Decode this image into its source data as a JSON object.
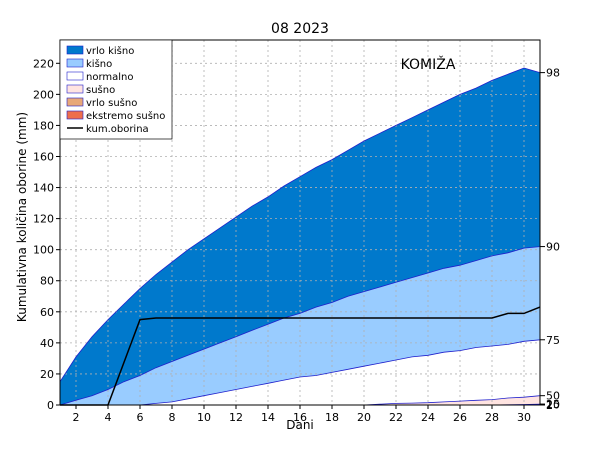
{
  "chart_data": {
    "type": "area",
    "title": "08 2023",
    "station": "KOMIŽA",
    "xlabel": "Dani",
    "ylabel": "Kumulativna količina oborine (mm)",
    "xlim": [
      1,
      31
    ],
    "ylim": [
      0,
      235
    ],
    "x_ticks": [
      2,
      4,
      6,
      8,
      10,
      12,
      14,
      16,
      18,
      20,
      22,
      24,
      26,
      28,
      30
    ],
    "y_ticks": [
      0,
      20,
      40,
      60,
      80,
      100,
      120,
      140,
      160,
      180,
      200,
      220
    ],
    "grid": true,
    "legend_position": "top-left",
    "right_axis_percentiles": [
      {
        "label": "98",
        "value": 214
      },
      {
        "label": "90",
        "value": 102
      },
      {
        "label": "75",
        "value": 42
      },
      {
        "label": "50",
        "value": 6
      },
      {
        "label": "25",
        "value": 0.6
      },
      {
        "label": "10",
        "value": 0.2
      },
      {
        "label": "2",
        "value": 0
      }
    ],
    "x": [
      1,
      2,
      3,
      4,
      5,
      6,
      7,
      8,
      9,
      10,
      11,
      12,
      13,
      14,
      15,
      16,
      17,
      18,
      19,
      20,
      21,
      22,
      23,
      24,
      25,
      26,
      27,
      28,
      29,
      30,
      31
    ],
    "series": [
      {
        "name": "vrlo kišno",
        "color": "#0079cc",
        "lower": "kišno",
        "values": [
          15,
          31,
          44,
          55,
          65,
          75,
          84,
          92,
          100,
          107,
          114,
          121,
          128,
          134,
          141,
          147,
          153,
          158,
          164,
          170,
          175,
          180,
          185,
          190,
          195,
          200,
          204,
          209,
          213,
          217,
          214
        ]
      },
      {
        "name": "kišno",
        "color": "#99ccff",
        "lower": "normalno",
        "values": [
          0,
          3,
          6,
          10,
          15,
          19,
          24,
          28,
          32,
          36,
          40,
          44,
          48,
          52,
          56,
          59,
          63,
          66,
          70,
          73,
          76,
          79,
          82,
          85,
          88,
          90,
          93,
          96,
          98,
          101,
          102
        ]
      },
      {
        "name": "normalno",
        "color": "#ffffff",
        "lower": "sušno",
        "values": [
          0,
          0,
          0,
          0,
          0,
          0,
          1,
          2,
          4,
          6,
          8,
          10,
          12,
          14,
          16,
          18,
          19,
          21,
          23,
          25,
          27,
          29,
          31,
          32,
          34,
          35,
          37,
          38,
          39,
          41,
          42
        ]
      },
      {
        "name": "sušno",
        "color": "#ffe4e1",
        "lower": "vrlo sušno",
        "values": [
          0,
          0,
          0,
          0,
          0,
          0,
          0,
          0,
          0,
          0,
          0,
          0,
          0,
          0,
          0,
          0,
          0,
          0,
          0,
          0,
          0.5,
          1,
          1.2,
          1.5,
          2,
          2.5,
          3,
          3.5,
          4.5,
          5,
          6
        ]
      },
      {
        "name": "vrlo sušno",
        "color": "#e8a878",
        "lower": "ekstremo sušno",
        "values": [
          0,
          0,
          0,
          0,
          0,
          0,
          0,
          0,
          0,
          0,
          0,
          0,
          0,
          0,
          0,
          0,
          0,
          0,
          0,
          0,
          0,
          0,
          0,
          0,
          0,
          0,
          0,
          0,
          0.1,
          0.3,
          0.6
        ]
      },
      {
        "name": "ekstremo sušno",
        "color": "#ee6e4b",
        "lower": null,
        "values": [
          0,
          0,
          0,
          0,
          0,
          0,
          0,
          0,
          0,
          0,
          0,
          0,
          0,
          0,
          0,
          0,
          0,
          0,
          0,
          0,
          0,
          0,
          0,
          0,
          0,
          0,
          0,
          0,
          0,
          0,
          0.2
        ]
      }
    ],
    "kum_oborina": {
      "name": "kum.oborina",
      "color": "#000000",
      "points": [
        [
          1,
          0
        ],
        [
          4,
          0
        ],
        [
          6,
          55
        ],
        [
          7,
          56
        ],
        [
          8,
          56
        ],
        [
          16,
          56
        ],
        [
          28,
          56
        ],
        [
          29,
          59
        ],
        [
          30,
          59
        ],
        [
          31,
          63
        ]
      ]
    }
  }
}
